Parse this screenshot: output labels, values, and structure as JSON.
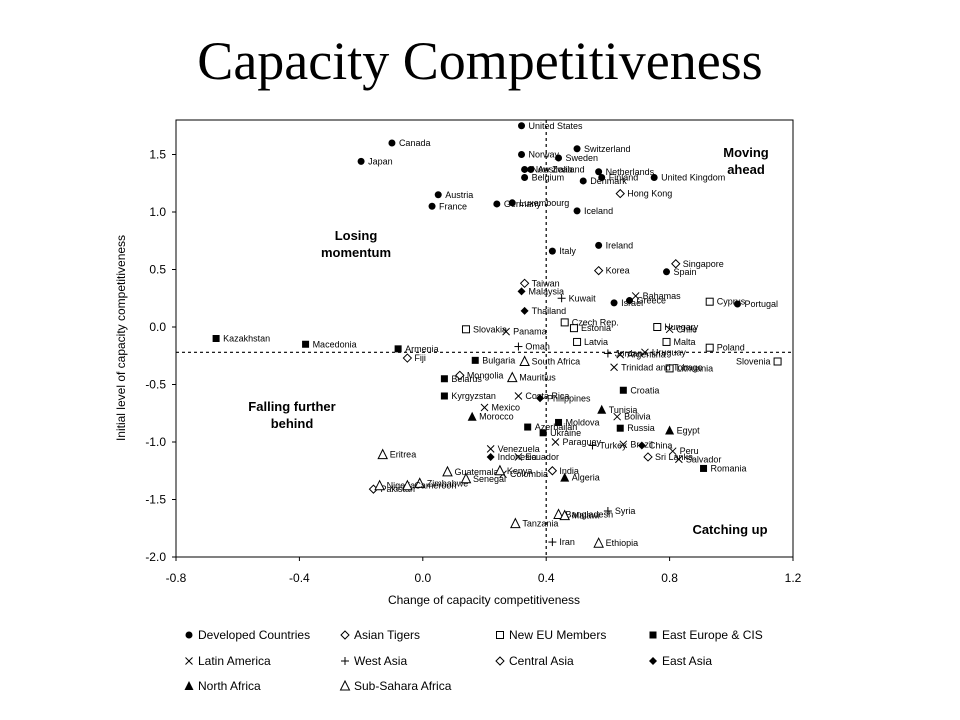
{
  "title": "Capacity Competitiveness",
  "chart_data": {
    "type": "scatter",
    "xlabel": "Change of capacity competitiveness",
    "ylabel": "Initial level of capacity competitiveness",
    "xlim": [
      -0.8,
      1.2
    ],
    "ylim": [
      -2.0,
      1.8
    ],
    "x_ticks": [
      "-0.8",
      "-0.4",
      "0.0",
      "0.4",
      "0.8",
      "1.2"
    ],
    "y_ticks": [
      "1.5",
      "1.0",
      "0.5",
      "0.0",
      "-0.5",
      "-1.0",
      "-1.5",
      "-2.0"
    ],
    "x_tick_values": [
      -0.8,
      -0.4,
      0.0,
      0.4,
      0.8,
      1.2
    ],
    "y_tick_values": [
      1.5,
      1.0,
      0.5,
      0.0,
      -0.5,
      -1.0,
      -1.5,
      -2.0
    ],
    "reference_lines": {
      "x": 0.4,
      "y": -0.22
    },
    "quadrant_labels": {
      "top_right": [
        "Moving",
        "ahead"
      ],
      "top_left": [
        "Losing",
        "momentum"
      ],
      "bottom_left": [
        "Falling further",
        "behind"
      ],
      "bottom_right": [
        "Catching up"
      ]
    },
    "legend": [
      {
        "group": "Developed Countries",
        "marker": "dot"
      },
      {
        "group": "Asian Tigers",
        "marker": "open-diamond"
      },
      {
        "group": "New EU Members",
        "marker": "open-square"
      },
      {
        "group": "East Europe & CIS",
        "marker": "square"
      },
      {
        "group": "Latin America",
        "marker": "x"
      },
      {
        "group": "West Asia",
        "marker": "plus"
      },
      {
        "group": "Central Asia",
        "marker": "open-diamond"
      },
      {
        "group": "East Asia",
        "marker": "diamond"
      },
      {
        "group": "North Africa",
        "marker": "triangle"
      },
      {
        "group": "Sub-Sahara Africa",
        "marker": "open-triangle"
      }
    ],
    "points": [
      {
        "label": "United States",
        "group": "Developed Countries",
        "x": 0.32,
        "y": 1.75
      },
      {
        "label": "Canada",
        "group": "Developed Countries",
        "x": -0.1,
        "y": 1.6
      },
      {
        "label": "Japan",
        "group": "Developed Countries",
        "x": -0.2,
        "y": 1.44
      },
      {
        "label": "Norway",
        "group": "Developed Countries",
        "x": 0.32,
        "y": 1.5
      },
      {
        "label": "Switzerland",
        "group": "Developed Countries",
        "x": 0.5,
        "y": 1.55
      },
      {
        "label": "Sweden",
        "group": "Developed Countries",
        "x": 0.44,
        "y": 1.47
      },
      {
        "label": "New Zealand",
        "group": "Developed Countries",
        "x": 0.33,
        "y": 1.37
      },
      {
        "label": "Australia",
        "group": "Developed Countries",
        "x": 0.35,
        "y": 1.37
      },
      {
        "label": "Belgium",
        "group": "Developed Countries",
        "x": 0.33,
        "y": 1.3
      },
      {
        "label": "Netherlands",
        "group": "Developed Countries",
        "x": 0.57,
        "y": 1.35
      },
      {
        "label": "Denmark",
        "group": "Developed Countries",
        "x": 0.52,
        "y": 1.27
      },
      {
        "label": "Finland",
        "group": "Developed Countries",
        "x": 0.58,
        "y": 1.3
      },
      {
        "label": "United Kingdom",
        "group": "Developed Countries",
        "x": 0.75,
        "y": 1.3
      },
      {
        "label": "Austria",
        "group": "Developed Countries",
        "x": 0.05,
        "y": 1.15
      },
      {
        "label": "France",
        "group": "Developed Countries",
        "x": 0.03,
        "y": 1.05
      },
      {
        "label": "Luxembourg",
        "group": "Developed Countries",
        "x": 0.29,
        "y": 1.08
      },
      {
        "label": "Germany",
        "group": "Developed Countries",
        "x": 0.24,
        "y": 1.07
      },
      {
        "label": "Iceland",
        "group": "Developed Countries",
        "x": 0.5,
        "y": 1.01
      },
      {
        "label": "Italy",
        "group": "Developed Countries",
        "x": 0.42,
        "y": 0.66
      },
      {
        "label": "Ireland",
        "group": "Developed Countries",
        "x": 0.57,
        "y": 0.71
      },
      {
        "label": "Spain",
        "group": "Developed Countries",
        "x": 0.79,
        "y": 0.48
      },
      {
        "label": "Portugal",
        "group": "Developed Countries",
        "x": 1.02,
        "y": 0.2
      },
      {
        "label": "Israel",
        "group": "Developed Countries",
        "x": 0.62,
        "y": 0.21
      },
      {
        "label": "Greece",
        "group": "Developed Countries",
        "x": 0.67,
        "y": 0.23
      },
      {
        "label": "Singapore",
        "group": "Asian Tigers",
        "x": 0.82,
        "y": 0.55
      },
      {
        "label": "Korea",
        "group": "Asian Tigers",
        "x": 0.57,
        "y": 0.49
      },
      {
        "label": "Taiwan",
        "group": "Asian Tigers",
        "x": 0.33,
        "y": 0.38
      },
      {
        "label": "Hong Kong",
        "group": "Asian Tigers",
        "x": 0.64,
        "y": 1.16
      },
      {
        "label": "Cyprus",
        "group": "New EU Members",
        "x": 0.93,
        "y": 0.22
      },
      {
        "label": "Czech Rep.",
        "group": "New EU Members",
        "x": 0.46,
        "y": 0.04
      },
      {
        "label": "Estonia",
        "group": "New EU Members",
        "x": 0.49,
        "y": -0.01
      },
      {
        "label": "Latvia",
        "group": "New EU Members",
        "x": 0.5,
        "y": -0.13
      },
      {
        "label": "Slovakia",
        "group": "New EU Members",
        "x": 0.14,
        "y": -0.02
      },
      {
        "label": "Hungary",
        "group": "New EU Members",
        "x": 0.76,
        "y": 0.0
      },
      {
        "label": "Malta",
        "group": "New EU Members",
        "x": 0.79,
        "y": -0.13
      },
      {
        "label": "Poland",
        "group": "New EU Members",
        "x": 0.93,
        "y": -0.18
      },
      {
        "label": "Lithuania",
        "group": "New EU Members",
        "x": 0.8,
        "y": -0.36
      },
      {
        "label": "Slovenia",
        "group": "New EU Members",
        "x": 1.15,
        "y": -0.3
      },
      {
        "label": "Kazakhstan",
        "group": "East Europe & CIS",
        "x": -0.67,
        "y": -0.1
      },
      {
        "label": "Macedonia",
        "group": "East Europe & CIS",
        "x": -0.38,
        "y": -0.15
      },
      {
        "label": "Armenia",
        "group": "East Europe & CIS",
        "x": -0.08,
        "y": -0.19
      },
      {
        "label": "Bulgaria",
        "group": "East Europe & CIS",
        "x": 0.17,
        "y": -0.29
      },
      {
        "label": "Belarus",
        "group": "East Europe & CIS",
        "x": 0.07,
        "y": -0.45
      },
      {
        "label": "Kyrgyzstan",
        "group": "East Europe & CIS",
        "x": 0.07,
        "y": -0.6
      },
      {
        "label": "Croatia",
        "group": "East Europe & CIS",
        "x": 0.65,
        "y": -0.55
      },
      {
        "label": "Azerbaijan",
        "group": "East Europe & CIS",
        "x": 0.34,
        "y": -0.87
      },
      {
        "label": "Ukraine",
        "group": "East Europe & CIS",
        "x": 0.39,
        "y": -0.92
      },
      {
        "label": "Moldova",
        "group": "East Europe & CIS",
        "x": 0.44,
        "y": -0.83
      },
      {
        "label": "Russia",
        "group": "East Europe & CIS",
        "x": 0.64,
        "y": -0.88
      },
      {
        "label": "Romania",
        "group": "East Europe & CIS",
        "x": 0.91,
        "y": -1.23
      },
      {
        "label": "Bahamas",
        "group": "Latin America",
        "x": 0.69,
        "y": 0.27
      },
      {
        "label": "Chile",
        "group": "Latin America",
        "x": 0.8,
        "y": -0.02
      },
      {
        "label": "Panama",
        "group": "Latin America",
        "x": 0.27,
        "y": -0.04
      },
      {
        "label": "Uruguay",
        "group": "Latin America",
        "x": 0.72,
        "y": -0.22
      },
      {
        "label": "Argentina",
        "group": "Latin America",
        "x": 0.64,
        "y": -0.24
      },
      {
        "label": "Trinidad and Tobago",
        "group": "Latin America",
        "x": 0.62,
        "y": -0.35
      },
      {
        "label": "Costa Rica",
        "group": "Latin America",
        "x": 0.31,
        "y": -0.6
      },
      {
        "label": "Mexico",
        "group": "Latin America",
        "x": 0.2,
        "y": -0.7
      },
      {
        "label": "Bolivia",
        "group": "Latin America",
        "x": 0.63,
        "y": -0.78
      },
      {
        "label": "Venezuela",
        "group": "Latin America",
        "x": 0.22,
        "y": -1.06
      },
      {
        "label": "Paraguay",
        "group": "Latin America",
        "x": 0.43,
        "y": -1.0
      },
      {
        "label": "Brazil",
        "group": "Latin America",
        "x": 0.65,
        "y": -1.02
      },
      {
        "label": "Ecuador",
        "group": "Latin America",
        "x": 0.31,
        "y": -1.13
      },
      {
        "label": "Peru",
        "group": "Latin America",
        "x": 0.81,
        "y": -1.08
      },
      {
        "label": "Salvador",
        "group": "Latin America",
        "x": 0.83,
        "y": -1.15
      },
      {
        "label": "Colombia",
        "group": "Latin America",
        "x": 0.26,
        "y": -1.28
      },
      {
        "label": "Kuwait",
        "group": "West Asia",
        "x": 0.45,
        "y": 0.25
      },
      {
        "label": "Oman",
        "group": "West Asia",
        "x": 0.31,
        "y": -0.17
      },
      {
        "label": "Jordan",
        "group": "West Asia",
        "x": 0.6,
        "y": -0.23
      },
      {
        "label": "Turkey",
        "group": "West Asia",
        "x": 0.55,
        "y": -1.03
      },
      {
        "label": "Syria",
        "group": "West Asia",
        "x": 0.6,
        "y": -1.6
      },
      {
        "label": "Iran",
        "group": "West Asia",
        "x": 0.42,
        "y": -1.87
      },
      {
        "label": "Fiji",
        "group": "Central Asia",
        "x": -0.05,
        "y": -0.27
      },
      {
        "label": "Mongolia",
        "group": "Central Asia",
        "x": 0.12,
        "y": -0.42
      },
      {
        "label": "Sri Lanka",
        "group": "Central Asia",
        "x": 0.73,
        "y": -1.13
      },
      {
        "label": "India",
        "group": "Central Asia",
        "x": 0.42,
        "y": -1.25
      },
      {
        "label": "Pakistan",
        "group": "Central Asia",
        "x": -0.16,
        "y": -1.41
      },
      {
        "label": "Malaysia",
        "group": "East Asia",
        "x": 0.32,
        "y": 0.31
      },
      {
        "label": "Thailand",
        "group": "East Asia",
        "x": 0.33,
        "y": 0.14
      },
      {
        "label": "Philippines",
        "group": "East Asia",
        "x": 0.38,
        "y": -0.62
      },
      {
        "label": "China",
        "group": "East Asia",
        "x": 0.71,
        "y": -1.03
      },
      {
        "label": "Indonesia",
        "group": "East Asia",
        "x": 0.22,
        "y": -1.13
      },
      {
        "label": "Tunisia",
        "group": "North Africa",
        "x": 0.58,
        "y": -0.72
      },
      {
        "label": "Morocco",
        "group": "North Africa",
        "x": 0.16,
        "y": -0.78
      },
      {
        "label": "Egypt",
        "group": "North Africa",
        "x": 0.8,
        "y": -0.9
      },
      {
        "label": "Algeria",
        "group": "North Africa",
        "x": 0.46,
        "y": -1.31
      },
      {
        "label": "South Africa",
        "group": "Sub-Sahara Africa",
        "x": 0.33,
        "y": -0.3
      },
      {
        "label": "Mauritius",
        "group": "Sub-Sahara Africa",
        "x": 0.29,
        "y": -0.44
      },
      {
        "label": "Eritrea",
        "group": "Sub-Sahara Africa",
        "x": -0.13,
        "y": -1.11
      },
      {
        "label": "Zimbabwe",
        "group": "Sub-Sahara Africa",
        "x": -0.01,
        "y": -1.36
      },
      {
        "label": "Guatemala",
        "group": "Sub-Sahara Africa",
        "x": 0.08,
        "y": -1.26
      },
      {
        "label": "Senegal",
        "group": "Sub-Sahara Africa",
        "x": 0.14,
        "y": -1.32
      },
      {
        "label": "Kenya",
        "group": "Sub-Sahara Africa",
        "x": 0.25,
        "y": -1.25
      },
      {
        "label": "Nigeria",
        "group": "Sub-Sahara Africa",
        "x": -0.14,
        "y": -1.38
      },
      {
        "label": "Cameroon",
        "group": "Sub-Sahara Africa",
        "x": -0.05,
        "y": -1.38
      },
      {
        "label": "Bangladesh",
        "group": "Sub-Sahara Africa",
        "x": 0.44,
        "y": -1.63
      },
      {
        "label": "Malawi",
        "group": "Sub-Sahara Africa",
        "x": 0.46,
        "y": -1.64
      },
      {
        "label": "Tanzania",
        "group": "Sub-Sahara Africa",
        "x": 0.3,
        "y": -1.71
      },
      {
        "label": "Ethiopia",
        "group": "Sub-Sahara Africa",
        "x": 0.57,
        "y": -1.88
      }
    ]
  }
}
